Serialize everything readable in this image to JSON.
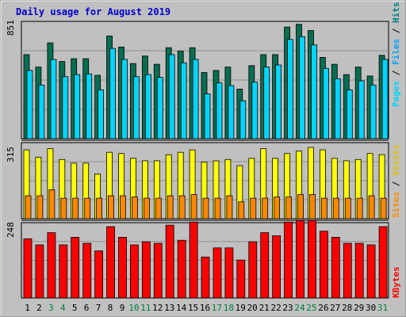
{
  "colors": {
    "frame": "#c0c0c0",
    "plot": "#c0c0c0",
    "title": "#0000cc",
    "pages": "#066e50",
    "files": "#00d4ff",
    "hits": "#00a3a3",
    "sites": "#ff8800",
    "visits": "#ffff00",
    "kbytes": "#ff0000",
    "weekend_day": "#008040",
    "weekday_day": "#000000",
    "separator": "#000000"
  },
  "chart_data": [
    {
      "type": "bar",
      "title": "Daily usage for August 2019",
      "panel": "top",
      "ymax_label": "851",
      "ylim": [
        0,
        851
      ],
      "categories": [
        "1",
        "2",
        "3",
        "4",
        "5",
        "6",
        "7",
        "8",
        "9",
        "10",
        "11",
        "12",
        "13",
        "14",
        "15",
        "16",
        "17",
        "18",
        "19",
        "20",
        "21",
        "22",
        "23",
        "24",
        "25",
        "26",
        "27",
        "28",
        "29",
        "30",
        "31"
      ],
      "weekend_days": [
        3,
        4,
        10,
        11,
        17,
        18,
        24,
        25,
        31
      ],
      "legend": [
        "Pages",
        "/",
        "Files",
        "/",
        "Hits"
      ],
      "series": [
        {
          "name": "Pages",
          "values": [
            610,
            520,
            695,
            560,
            580,
            580,
            460,
            745,
            665,
            545,
            600,
            540,
            660,
            635,
            660,
            480,
            495,
            520,
            360,
            530,
            610,
            610,
            810,
            830,
            785,
            590,
            540,
            465,
            520,
            455,
            605
          ]
        },
        {
          "name": "Files",
          "values": [
            495,
            390,
            575,
            450,
            465,
            470,
            355,
            655,
            575,
            450,
            465,
            445,
            610,
            550,
            575,
            325,
            405,
            385,
            275,
            410,
            520,
            535,
            720,
            740,
            680,
            510,
            435,
            355,
            420,
            390,
            575
          ]
        }
      ]
    },
    {
      "type": "bar",
      "panel": "middle",
      "ymax_label": "315",
      "ylim": [
        0,
        315
      ],
      "legend": [
        "Sites",
        "/",
        "Visits"
      ],
      "series": [
        {
          "name": "Visits",
          "values": [
            285,
            255,
            290,
            245,
            230,
            230,
            185,
            275,
            270,
            250,
            240,
            240,
            265,
            275,
            285,
            235,
            240,
            245,
            220,
            250,
            290,
            250,
            270,
            280,
            295,
            285,
            250,
            240,
            245,
            270,
            265
          ]
        },
        {
          "name": "Sites",
          "values": [
            95,
            95,
            120,
            85,
            85,
            85,
            85,
            95,
            95,
            90,
            85,
            85,
            95,
            95,
            100,
            85,
            85,
            95,
            70,
            85,
            85,
            90,
            90,
            100,
            100,
            85,
            85,
            85,
            85,
            95,
            85
          ]
        }
      ]
    },
    {
      "type": "bar",
      "panel": "bottom",
      "ymax_label": "248",
      "ylim": [
        0,
        248
      ],
      "legend": [
        "KBytes"
      ],
      "series": [
        {
          "name": "KBytes",
          "values": [
            195,
            175,
            215,
            175,
            200,
            180,
            155,
            235,
            200,
            175,
            185,
            180,
            240,
            190,
            250,
            135,
            165,
            165,
            125,
            185,
            215,
            205,
            250,
            255,
            255,
            220,
            200,
            180,
            180,
            175,
            235
          ]
        }
      ]
    }
  ]
}
